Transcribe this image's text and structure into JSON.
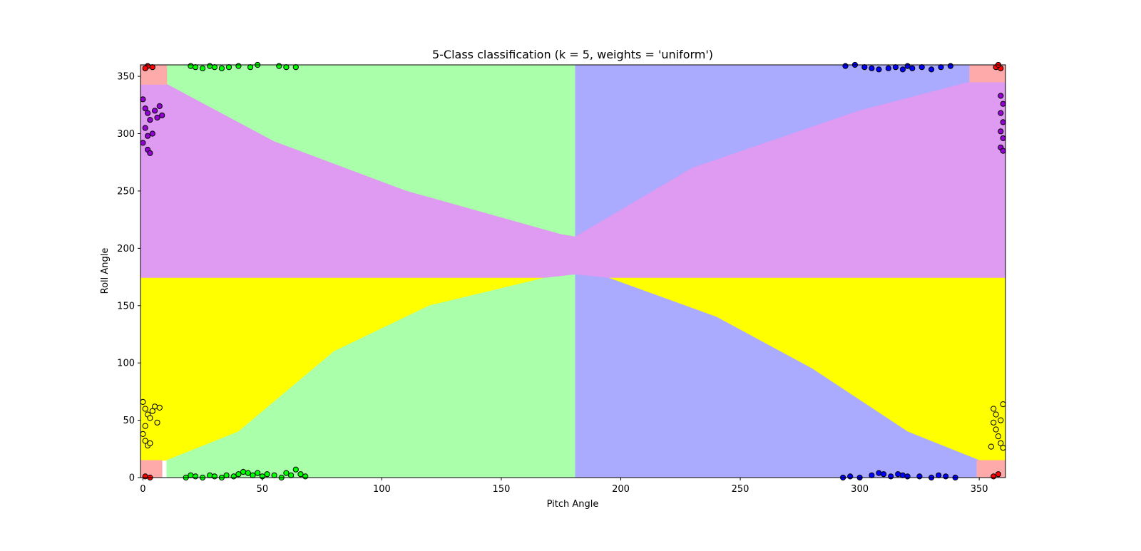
{
  "chart_data": {
    "type": "scatter",
    "title": "5-Class classification (k = 5, weights = 'uniform')",
    "xlabel": "Pitch Angle",
    "ylabel": "Roll Angle",
    "xlim": [
      -1,
      361
    ],
    "ylim": [
      0,
      360
    ],
    "xticks": [
      0,
      50,
      100,
      150,
      200,
      250,
      300,
      350
    ],
    "yticks": [
      0,
      50,
      100,
      150,
      200,
      250,
      300,
      350
    ],
    "grid": false,
    "colors": {
      "red_region": "#FFAAAA",
      "green_region": "#AAFFAA",
      "blue_region": "#AAAAFF",
      "purple_region": "#DF9AF1",
      "yellow_region": "#FFFF00",
      "red_points": "#FF0000",
      "green_points": "#00FF00",
      "blue_points": "#0000FF",
      "purple_points": "#9400D3",
      "yellow_points": "#FFFF00",
      "point_edge": "#000000"
    },
    "decision_regions": [
      {
        "class": "green",
        "color_key": "green_region",
        "polygon": [
          [
            10,
            360
          ],
          [
            181,
            360
          ],
          [
            181,
            210
          ],
          [
            175,
            212
          ],
          [
            110,
            250
          ],
          [
            55,
            293
          ],
          [
            10,
            340
          ]
        ]
      },
      {
        "class": "blue",
        "color_key": "blue_region",
        "polygon": [
          [
            181,
            360
          ],
          [
            346,
            360
          ],
          [
            346,
            345
          ],
          [
            300,
            320
          ],
          [
            230,
            270
          ],
          [
            181,
            210
          ]
        ]
      },
      {
        "class": "purple",
        "color_key": "purple_region",
        "polygon": [
          [
            -1,
            343
          ],
          [
            10,
            343
          ],
          [
            55,
            293
          ],
          [
            110,
            250
          ],
          [
            175,
            212
          ],
          [
            181,
            210
          ],
          [
            230,
            270
          ],
          [
            300,
            320
          ],
          [
            346,
            345
          ],
          [
            361,
            345
          ],
          [
            361,
            174
          ],
          [
            195,
            174
          ],
          [
            181,
            177
          ],
          [
            168,
            174
          ],
          [
            -1,
            174
          ]
        ]
      },
      {
        "class": "yellow",
        "color_key": "yellow_region",
        "polygon": [
          [
            -1,
            174
          ],
          [
            168,
            174
          ],
          [
            120,
            150
          ],
          [
            80,
            110
          ],
          [
            40,
            40
          ],
          [
            10,
            15
          ],
          [
            -1,
            15
          ]
        ]
      },
      {
        "class": "yellow",
        "color_key": "yellow_region",
        "polygon": [
          [
            195,
            174
          ],
          [
            361,
            174
          ],
          [
            361,
            15
          ],
          [
            350,
            15
          ],
          [
            320,
            40
          ],
          [
            280,
            95
          ],
          [
            240,
            140
          ]
        ]
      },
      {
        "class": "green",
        "color_key": "green_region",
        "polygon": [
          [
            10,
            0
          ],
          [
            181,
            0
          ],
          [
            181,
            177
          ],
          [
            168,
            174
          ],
          [
            120,
            150
          ],
          [
            80,
            110
          ],
          [
            40,
            40
          ],
          [
            10,
            15
          ]
        ]
      },
      {
        "class": "blue",
        "color_key": "blue_region",
        "polygon": [
          [
            181,
            0
          ],
          [
            350,
            0
          ],
          [
            350,
            15
          ],
          [
            320,
            40
          ],
          [
            280,
            95
          ],
          [
            240,
            140
          ],
          [
            195,
            174
          ],
          [
            181,
            177
          ]
        ]
      },
      {
        "class": "red",
        "color_key": "red_region",
        "polygon": [
          [
            -1,
            0
          ],
          [
            8,
            0
          ],
          [
            8,
            15
          ],
          [
            -1,
            15
          ]
        ]
      },
      {
        "class": "red",
        "color_key": "red_region",
        "polygon": [
          [
            349,
            0
          ],
          [
            361,
            0
          ],
          [
            361,
            15
          ],
          [
            349,
            15
          ]
        ]
      },
      {
        "class": "red",
        "color_key": "red_region",
        "polygon": [
          [
            -1,
            343
          ],
          [
            10,
            343
          ],
          [
            10,
            360
          ],
          [
            -1,
            360
          ]
        ]
      },
      {
        "class": "red",
        "color_key": "red_region",
        "polygon": [
          [
            346,
            345
          ],
          [
            361,
            345
          ],
          [
            361,
            360
          ],
          [
            346,
            360
          ]
        ]
      }
    ],
    "series": [
      {
        "class": "red",
        "color_key": "red_points",
        "points": [
          [
            1,
            1
          ],
          [
            3,
            0
          ],
          [
            2,
            359
          ],
          [
            4,
            358
          ],
          [
            1,
            357
          ],
          [
            356,
            1
          ],
          [
            358,
            3
          ],
          [
            357,
            358
          ],
          [
            359,
            357
          ],
          [
            358,
            360
          ]
        ]
      },
      {
        "class": "green",
        "color_key": "green_points",
        "points": [
          [
            18,
            0
          ],
          [
            20,
            2
          ],
          [
            22,
            1
          ],
          [
            25,
            0
          ],
          [
            28,
            2
          ],
          [
            30,
            1
          ],
          [
            33,
            0
          ],
          [
            35,
            2
          ],
          [
            38,
            1
          ],
          [
            40,
            3
          ],
          [
            42,
            5
          ],
          [
            44,
            4
          ],
          [
            46,
            2
          ],
          [
            48,
            4
          ],
          [
            50,
            1
          ],
          [
            52,
            3
          ],
          [
            55,
            2
          ],
          [
            58,
            0
          ],
          [
            60,
            4
          ],
          [
            62,
            2
          ],
          [
            64,
            7
          ],
          [
            66,
            3
          ],
          [
            68,
            1
          ],
          [
            20,
            359
          ],
          [
            22,
            358
          ],
          [
            25,
            357
          ],
          [
            28,
            359
          ],
          [
            30,
            358
          ],
          [
            33,
            357
          ],
          [
            36,
            358
          ],
          [
            40,
            359
          ],
          [
            45,
            358
          ],
          [
            48,
            360
          ],
          [
            57,
            359
          ],
          [
            60,
            358
          ],
          [
            64,
            358
          ]
        ]
      },
      {
        "class": "blue",
        "color_key": "blue_points",
        "points": [
          [
            293,
            0
          ],
          [
            296,
            1
          ],
          [
            300,
            0
          ],
          [
            305,
            2
          ],
          [
            308,
            4
          ],
          [
            310,
            3
          ],
          [
            313,
            1
          ],
          [
            316,
            3
          ],
          [
            318,
            2
          ],
          [
            320,
            1
          ],
          [
            325,
            1
          ],
          [
            330,
            0
          ],
          [
            333,
            2
          ],
          [
            336,
            1
          ],
          [
            340,
            0
          ],
          [
            294,
            359
          ],
          [
            298,
            360
          ],
          [
            302,
            358
          ],
          [
            305,
            357
          ],
          [
            308,
            356
          ],
          [
            312,
            357
          ],
          [
            315,
            358
          ],
          [
            318,
            356
          ],
          [
            320,
            359
          ],
          [
            322,
            357
          ],
          [
            326,
            358
          ],
          [
            330,
            356
          ],
          [
            334,
            358
          ],
          [
            338,
            359
          ]
        ]
      },
      {
        "class": "purple",
        "color_key": "purple_points",
        "points": [
          [
            0,
            330
          ],
          [
            1,
            322
          ],
          [
            2,
            318
          ],
          [
            3,
            312
          ],
          [
            5,
            320
          ],
          [
            7,
            324
          ],
          [
            8,
            316
          ],
          [
            1,
            305
          ],
          [
            2,
            298
          ],
          [
            0,
            292
          ],
          [
            2,
            286
          ],
          [
            3,
            283
          ],
          [
            4,
            300
          ],
          [
            6,
            314
          ],
          [
            359,
            333
          ],
          [
            360,
            326
          ],
          [
            359,
            318
          ],
          [
            360,
            310
          ],
          [
            359,
            302
          ],
          [
            360,
            296
          ],
          [
            359,
            288
          ],
          [
            360,
            285
          ]
        ]
      },
      {
        "class": "yellow",
        "color_key": "yellow_points",
        "points": [
          [
            0,
            66
          ],
          [
            1,
            60
          ],
          [
            2,
            55
          ],
          [
            3,
            52
          ],
          [
            4,
            58
          ],
          [
            5,
            62
          ],
          [
            6,
            48
          ],
          [
            7,
            61
          ],
          [
            1,
            45
          ],
          [
            0,
            38
          ],
          [
            1,
            32
          ],
          [
            2,
            28
          ],
          [
            3,
            30
          ],
          [
            356,
            60
          ],
          [
            357,
            55
          ],
          [
            356,
            48
          ],
          [
            357,
            42
          ],
          [
            358,
            36
          ],
          [
            359,
            30
          ],
          [
            360,
            26
          ],
          [
            359,
            50
          ],
          [
            360,
            64
          ],
          [
            355,
            27
          ]
        ]
      }
    ]
  }
}
